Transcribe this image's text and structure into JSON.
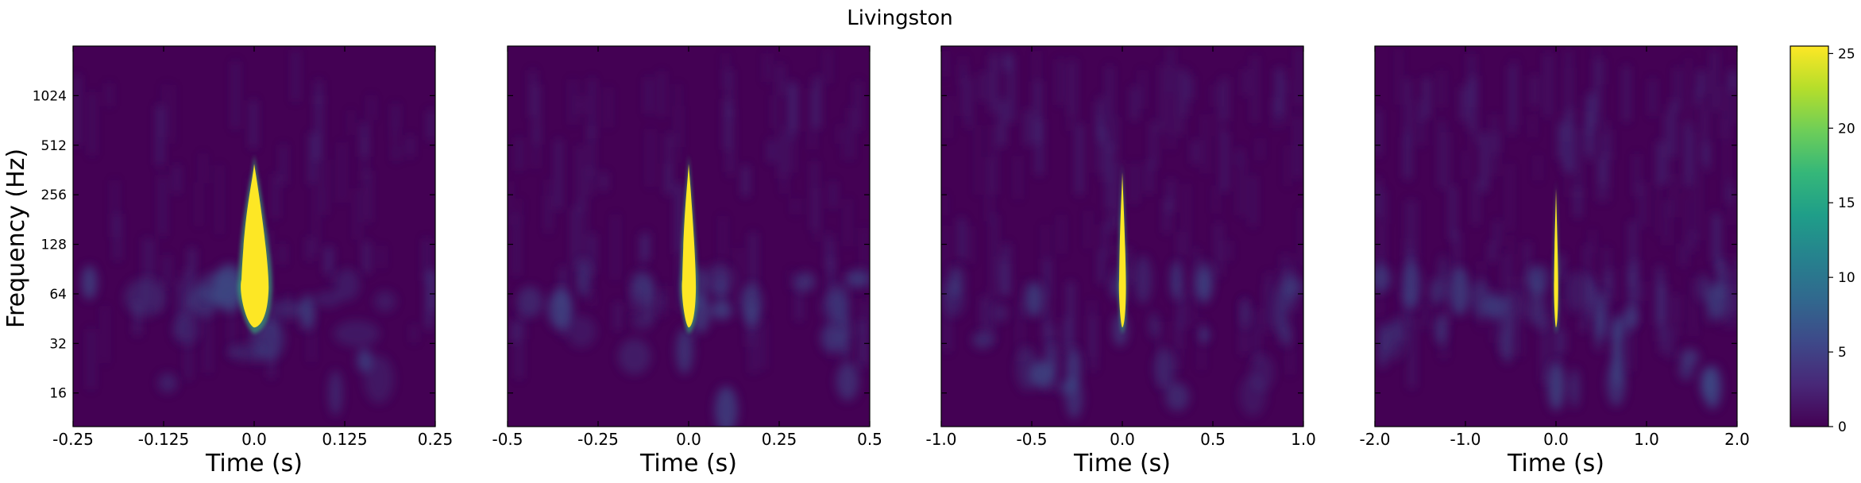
{
  "figure": {
    "title": "Livingston"
  },
  "chart_data": [
    {
      "type": "heatmap",
      "title": "",
      "xlabel": "Time (s)",
      "ylabel": "Frequency (Hz)",
      "xlim": [
        -0.25,
        0.25
      ],
      "ylim": [
        10,
        2048
      ],
      "yscale": "log2",
      "x_ticks": [
        -0.25,
        -0.125,
        0.0,
        0.125,
        0.25
      ],
      "x_tick_labels": [
        "-0.25",
        "-0.125",
        "0.0",
        "0.125",
        "0.25"
      ],
      "y_ticks": [
        16,
        32,
        64,
        128,
        256,
        512,
        1024
      ],
      "y_tick_labels": [
        "16",
        "32",
        "64",
        "128",
        "256",
        "512",
        "1024"
      ],
      "peak": {
        "time": 0.0,
        "freq_low": 40,
        "freq_high": 450
      }
    },
    {
      "type": "heatmap",
      "title": "",
      "xlabel": "Time (s)",
      "ylabel": "",
      "xlim": [
        -0.5,
        0.5
      ],
      "ylim": [
        10,
        2048
      ],
      "yscale": "log2",
      "x_ticks": [
        -0.5,
        -0.25,
        0.0,
        0.25,
        0.5
      ],
      "x_tick_labels": [
        "-0.5",
        "-0.25",
        "0.0",
        "0.25",
        "0.5"
      ],
      "peak": {
        "time": 0.0,
        "freq_low": 40,
        "freq_high": 450
      }
    },
    {
      "type": "heatmap",
      "title": "",
      "xlabel": "Time (s)",
      "ylabel": "",
      "xlim": [
        -1.0,
        1.0
      ],
      "ylim": [
        10,
        2048
      ],
      "yscale": "log2",
      "x_ticks": [
        -1.0,
        -0.5,
        0.0,
        0.5,
        1.0
      ],
      "x_tick_labels": [
        "-1.0",
        "-0.5",
        "0.0",
        "0.5",
        "1.0"
      ],
      "peak": {
        "time": 0.0,
        "freq_low": 40,
        "freq_high": 400
      }
    },
    {
      "type": "heatmap",
      "title": "",
      "xlabel": "Time (s)",
      "ylabel": "",
      "xlim": [
        -2.0,
        2.0
      ],
      "ylim": [
        10,
        2048
      ],
      "yscale": "log2",
      "x_ticks": [
        -2.0,
        -1.0,
        0.0,
        1.0,
        2.0
      ],
      "x_tick_labels": [
        "-2.0",
        "-1.0",
        "0.0",
        "1.0",
        "2.0"
      ],
      "peak": {
        "time": 0.0,
        "freq_low": 40,
        "freq_high": 320
      }
    }
  ],
  "colorbar": {
    "colormap": "viridis",
    "range": [
      0,
      25.5
    ],
    "ticks": [
      0,
      5,
      10,
      15,
      20,
      25
    ],
    "tick_labels": [
      "0",
      "5",
      "10",
      "15",
      "20",
      "25"
    ]
  },
  "colors": {
    "viridis_stops": [
      "#440154",
      "#482878",
      "#3e4989",
      "#31688e",
      "#26828e",
      "#1f9e89",
      "#35b779",
      "#6ece58",
      "#b5de2b",
      "#fde725"
    ],
    "background": "#440154",
    "noise": "#3b528b",
    "peak": "#fde725"
  }
}
